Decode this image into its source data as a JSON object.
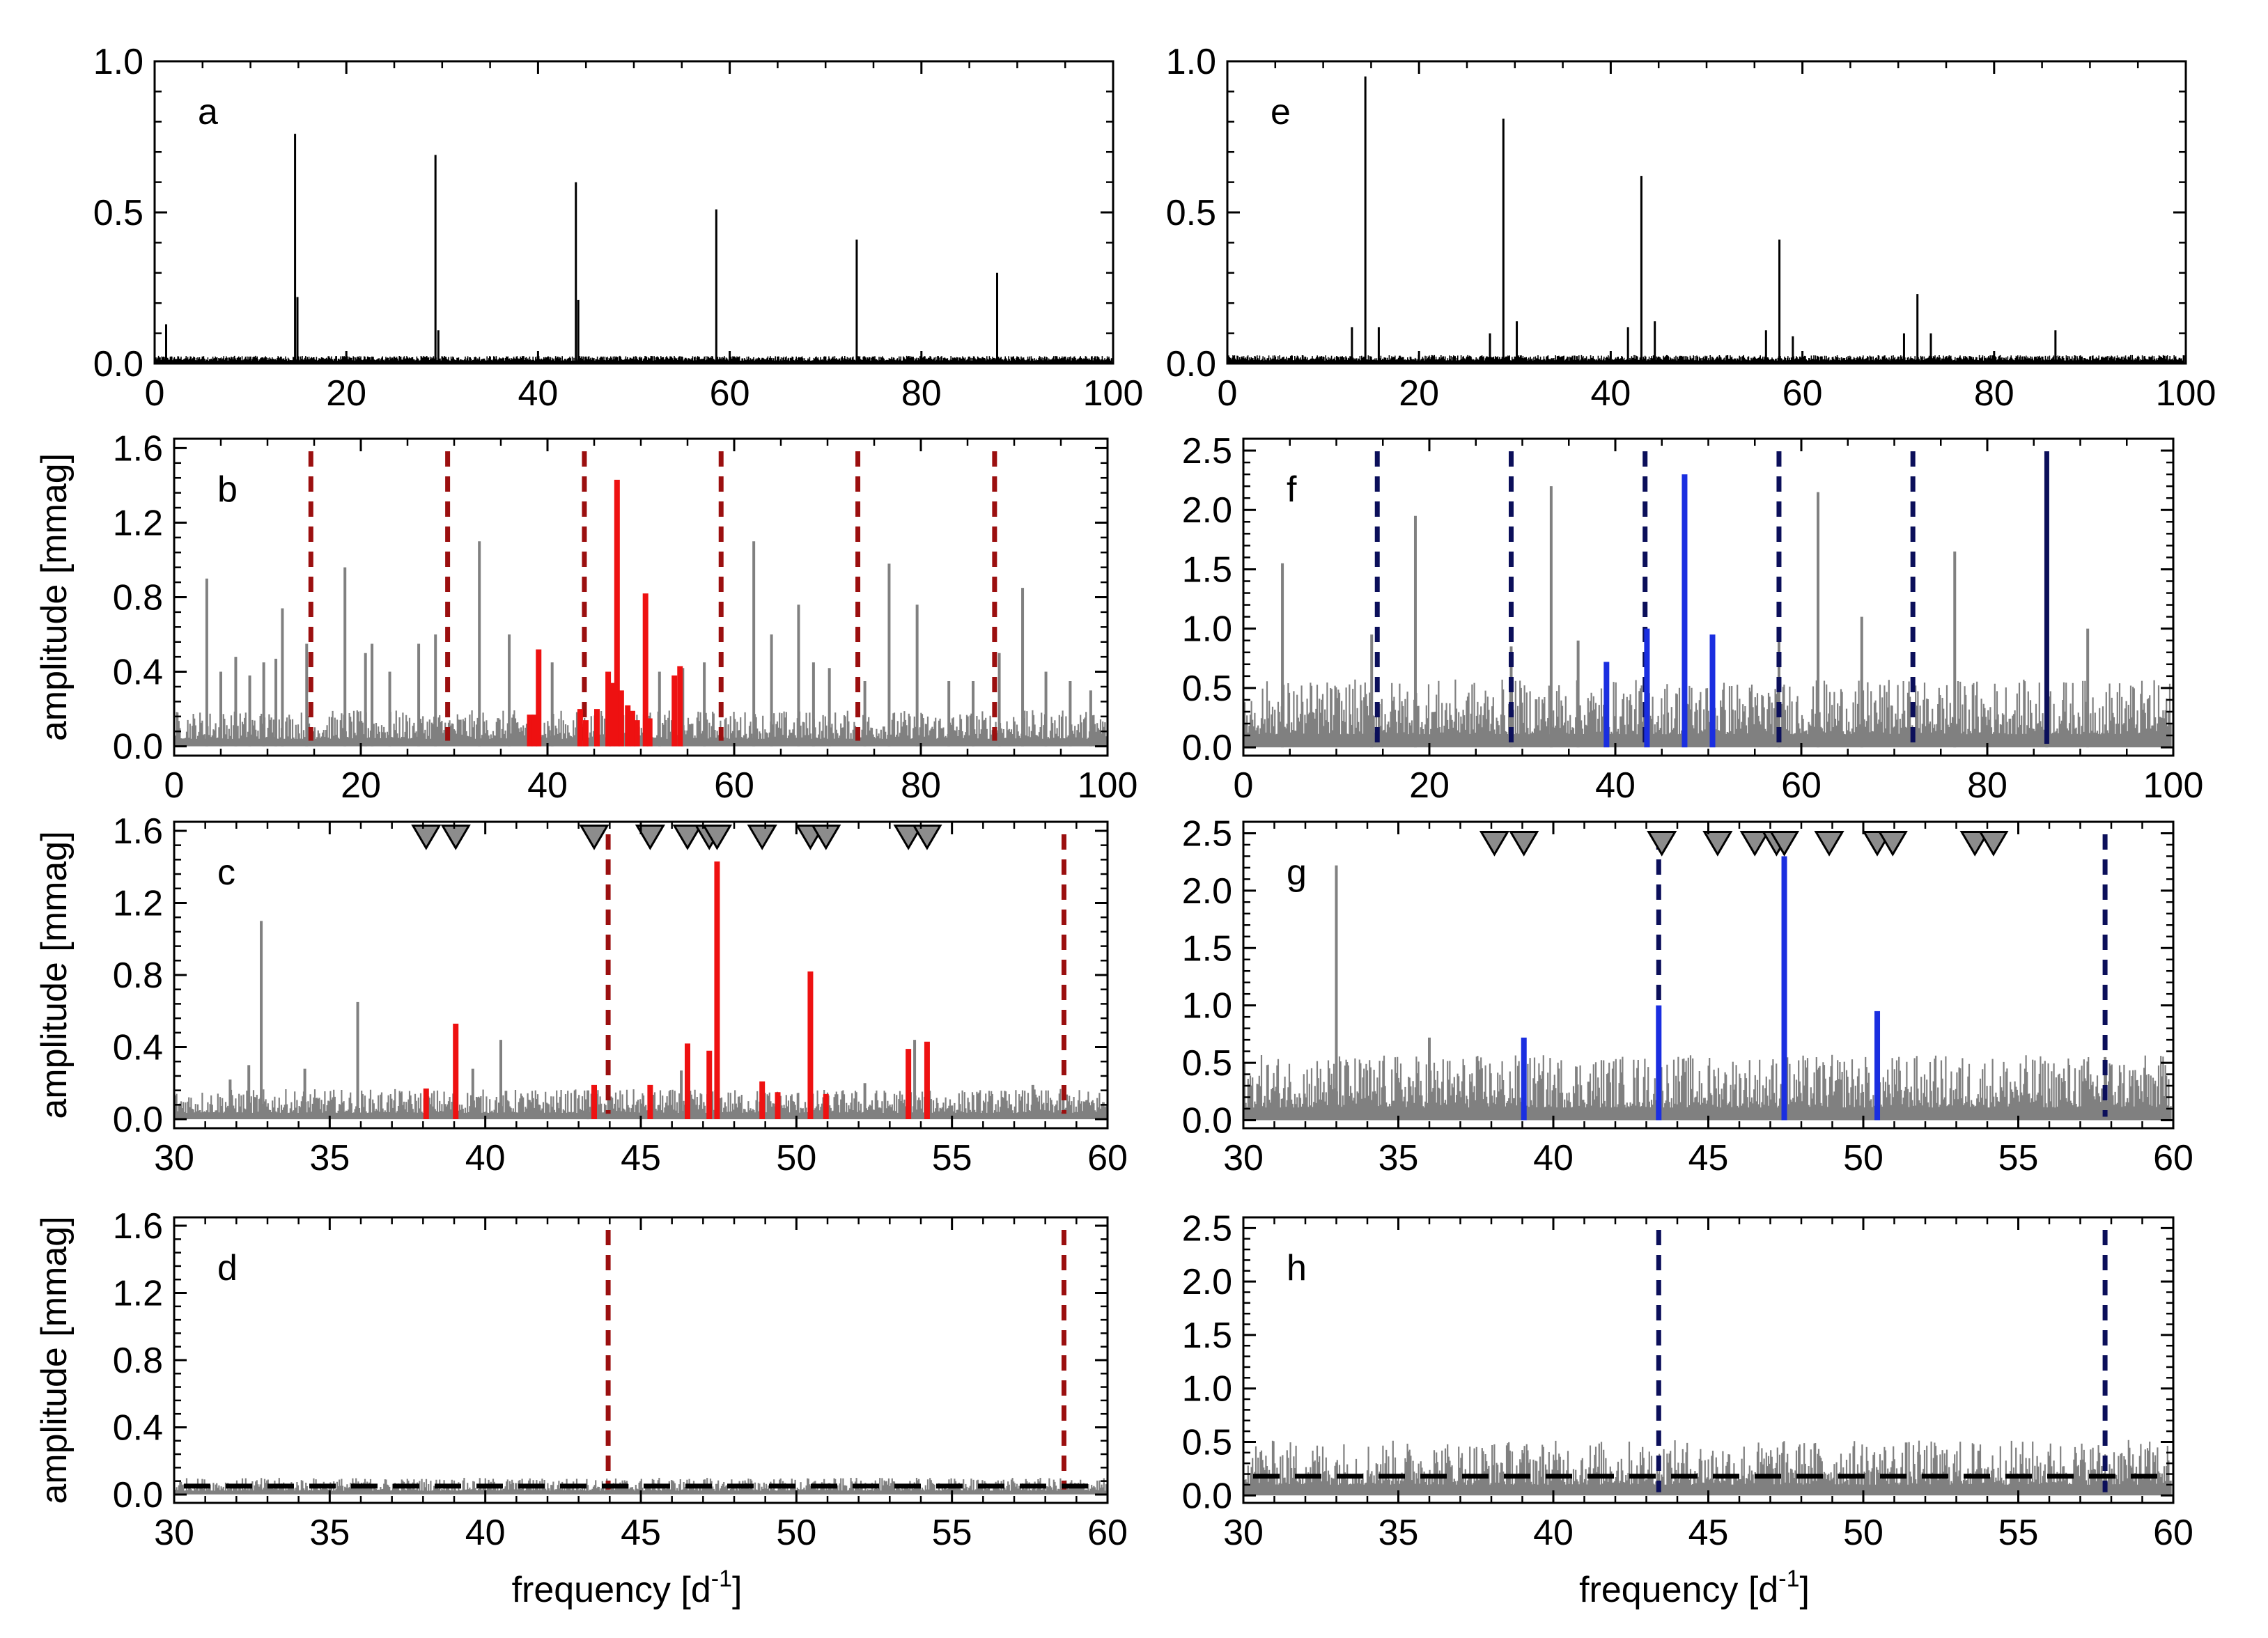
{
  "colors": {
    "noise": "#808080",
    "black": "#000000",
    "red": "#ee1111",
    "dark_red": "#9b0f0f",
    "blue": "#1a2ee0",
    "navy": "#0b0f5a",
    "triangle": "#8c8c8c"
  },
  "chart_data": [
    {
      "id": "a",
      "panel_label": "a",
      "type": "line",
      "xlim": [
        0,
        100
      ],
      "ylim": [
        0,
        1.0
      ],
      "xticks": [
        0,
        20,
        40,
        60,
        80,
        100
      ],
      "xtick_labels": [
        "0",
        "20",
        "40",
        "60",
        "80",
        "100"
      ],
      "yticks": [
        0,
        0.5,
        1.0
      ],
      "ytick_labels": [
        "0.0",
        "0.5",
        "1.0"
      ],
      "ylabel": "",
      "xlabel": "",
      "noise": {
        "level": 0.018,
        "color": "black"
      },
      "peaks_black": [
        {
          "x": 14.65,
          "y": 0.76
        },
        {
          "x": 29.3,
          "y": 0.69
        },
        {
          "x": 43.95,
          "y": 0.6
        },
        {
          "x": 58.6,
          "y": 0.51
        },
        {
          "x": 73.25,
          "y": 0.41
        },
        {
          "x": 87.9,
          "y": 0.3
        },
        {
          "x": 1.2,
          "y": 0.13
        },
        {
          "x": 14.9,
          "y": 0.22
        },
        {
          "x": 29.6,
          "y": 0.11
        },
        {
          "x": 44.2,
          "y": 0.21
        }
      ]
    },
    {
      "id": "b",
      "panel_label": "b",
      "type": "line",
      "xlim": [
        0,
        100
      ],
      "ylim": [
        -0.05,
        1.65
      ],
      "xticks": [
        0,
        20,
        40,
        60,
        80,
        100
      ],
      "xtick_labels": [
        "0",
        "20",
        "40",
        "60",
        "80",
        "100"
      ],
      "yticks": [
        0,
        0.4,
        0.8,
        1.2,
        1.6
      ],
      "ytick_labels": [
        "0.0",
        "0.4",
        "0.8",
        "1.2",
        "1.6"
      ],
      "ylabel": "amplitude [mmag]",
      "xlabel": "",
      "noise": {
        "level": 0.14,
        "color": "noise"
      },
      "peaks_gray": [
        {
          "x": 3.5,
          "y": 0.9
        },
        {
          "x": 5.0,
          "y": 0.4
        },
        {
          "x": 6.6,
          "y": 0.48
        },
        {
          "x": 8.1,
          "y": 0.38
        },
        {
          "x": 9.6,
          "y": 0.45
        },
        {
          "x": 10.9,
          "y": 0.47
        },
        {
          "x": 11.6,
          "y": 0.74
        },
        {
          "x": 14.2,
          "y": 0.55
        },
        {
          "x": 18.3,
          "y": 0.96
        },
        {
          "x": 20.5,
          "y": 0.5
        },
        {
          "x": 21.2,
          "y": 0.55
        },
        {
          "x": 23.1,
          "y": 0.4
        },
        {
          "x": 26.2,
          "y": 0.55
        },
        {
          "x": 28.0,
          "y": 0.6
        },
        {
          "x": 32.7,
          "y": 1.1
        },
        {
          "x": 35.9,
          "y": 0.6
        },
        {
          "x": 40.5,
          "y": 0.45
        },
        {
          "x": 52.0,
          "y": 0.4
        },
        {
          "x": 54.5,
          "y": 0.42
        },
        {
          "x": 56.8,
          "y": 0.45
        },
        {
          "x": 62.1,
          "y": 1.1
        },
        {
          "x": 64.0,
          "y": 0.6
        },
        {
          "x": 66.9,
          "y": 0.76
        },
        {
          "x": 68.5,
          "y": 0.45
        },
        {
          "x": 70.2,
          "y": 0.42
        },
        {
          "x": 74.0,
          "y": 0.35
        },
        {
          "x": 76.6,
          "y": 0.98
        },
        {
          "x": 79.6,
          "y": 0.76
        },
        {
          "x": 83.0,
          "y": 0.35
        },
        {
          "x": 85.6,
          "y": 0.35
        },
        {
          "x": 88.4,
          "y": 0.5
        },
        {
          "x": 90.9,
          "y": 0.85
        },
        {
          "x": 93.4,
          "y": 0.4
        },
        {
          "x": 96.0,
          "y": 0.35
        },
        {
          "x": 98.2,
          "y": 0.3
        }
      ],
      "peaks_colored": [
        {
          "x": 38.1,
          "y": 0.17
        },
        {
          "x": 38.6,
          "y": 0.17
        },
        {
          "x": 39.05,
          "y": 0.52
        },
        {
          "x": 43.5,
          "y": 0.2
        },
        {
          "x": 44.1,
          "y": 0.14
        },
        {
          "x": 45.3,
          "y": 0.2
        },
        {
          "x": 46.5,
          "y": 0.4
        },
        {
          "x": 46.9,
          "y": 0.34
        },
        {
          "x": 47.45,
          "y": 1.43
        },
        {
          "x": 47.9,
          "y": 0.3
        },
        {
          "x": 48.6,
          "y": 0.22
        },
        {
          "x": 49.1,
          "y": 0.19
        },
        {
          "x": 49.6,
          "y": 0.14
        },
        {
          "x": 50.5,
          "y": 0.82
        },
        {
          "x": 50.95,
          "y": 0.15
        },
        {
          "x": 53.6,
          "y": 0.38
        },
        {
          "x": 54.2,
          "y": 0.43
        }
      ],
      "colored_color": "red",
      "dashed_lines": [
        14.65,
        29.3,
        43.95,
        58.6,
        73.25,
        87.9
      ],
      "dashed_color": "dark_red"
    },
    {
      "id": "c",
      "panel_label": "c",
      "type": "line",
      "xlim": [
        30,
        60
      ],
      "ylim": [
        -0.05,
        1.65
      ],
      "xticks": [
        30,
        35,
        40,
        45,
        50,
        55,
        60
      ],
      "xtick_labels": [
        "30",
        "35",
        "40",
        "45",
        "50",
        "55",
        "60"
      ],
      "yticks": [
        0,
        0.4,
        0.8,
        1.2,
        1.6
      ],
      "ytick_labels": [
        "0.0",
        "0.4",
        "0.8",
        "1.2",
        "1.6"
      ],
      "ylabel": "amplitude [mmag]",
      "xlabel": "",
      "noise": {
        "level": 0.12,
        "color": "noise"
      },
      "peaks_gray": [
        {
          "x": 31.8,
          "y": 0.22
        },
        {
          "x": 32.4,
          "y": 0.3
        },
        {
          "x": 32.8,
          "y": 1.1
        },
        {
          "x": 34.2,
          "y": 0.28
        },
        {
          "x": 35.9,
          "y": 0.65
        },
        {
          "x": 39.6,
          "y": 0.28
        },
        {
          "x": 40.5,
          "y": 0.44
        },
        {
          "x": 43.3,
          "y": 0.16
        },
        {
          "x": 46.3,
          "y": 0.27
        },
        {
          "x": 52.2,
          "y": 0.2
        },
        {
          "x": 53.8,
          "y": 0.44
        },
        {
          "x": 57.6,
          "y": 0.19
        }
      ],
      "peaks_colored": [
        {
          "x": 38.1,
          "y": 0.17
        },
        {
          "x": 39.05,
          "y": 0.53
        },
        {
          "x": 43.5,
          "y": 0.19
        },
        {
          "x": 45.3,
          "y": 0.19
        },
        {
          "x": 46.5,
          "y": 0.42
        },
        {
          "x": 47.2,
          "y": 0.38
        },
        {
          "x": 47.45,
          "y": 1.43
        },
        {
          "x": 48.9,
          "y": 0.21
        },
        {
          "x": 49.4,
          "y": 0.15
        },
        {
          "x": 50.45,
          "y": 0.82
        },
        {
          "x": 50.95,
          "y": 0.14
        },
        {
          "x": 53.6,
          "y": 0.39
        },
        {
          "x": 54.2,
          "y": 0.43
        }
      ],
      "colored_color": "red",
      "dashed_lines": [
        43.95,
        58.6
      ],
      "dashed_color": "dark_red",
      "triangles": [
        38.1,
        39.05,
        43.5,
        45.3,
        46.5,
        47.2,
        47.45,
        48.9,
        50.45,
        50.95,
        53.6,
        54.2
      ],
      "triangle_y": 1.57
    },
    {
      "id": "d",
      "panel_label": "d",
      "type": "line",
      "xlim": [
        30,
        60
      ],
      "ylim": [
        -0.05,
        1.65
      ],
      "xticks": [
        30,
        35,
        40,
        45,
        50,
        55,
        60
      ],
      "xtick_labels": [
        "30",
        "35",
        "40",
        "45",
        "50",
        "55",
        "60"
      ],
      "yticks": [
        0,
        0.4,
        0.8,
        1.2,
        1.6
      ],
      "ytick_labels": [
        "0.0",
        "0.4",
        "0.8",
        "1.2",
        "1.6"
      ],
      "ylabel": "amplitude [mmag]",
      "xlabel": "frequency [d",
      "noise": {
        "level": 0.07,
        "color": "noise"
      },
      "peaks_gray": [],
      "dashed_lines": [
        43.95,
        58.6
      ],
      "dashed_color": "dark_red",
      "threshold": 0.05
    },
    {
      "id": "e",
      "panel_label": "e",
      "type": "line",
      "xlim": [
        0,
        100
      ],
      "ylim": [
        0,
        1.0
      ],
      "xticks": [
        0,
        20,
        40,
        60,
        80,
        100
      ],
      "xtick_labels": [
        "0",
        "20",
        "40",
        "60",
        "80",
        "100"
      ],
      "yticks": [
        0,
        0.5,
        1.0
      ],
      "ytick_labels": [
        "0.0",
        "0.5",
        "1.0"
      ],
      "ylabel": "",
      "xlabel": "",
      "noise": {
        "level": 0.02,
        "color": "black"
      },
      "peaks_black": [
        {
          "x": 14.4,
          "y": 0.95
        },
        {
          "x": 28.8,
          "y": 0.81
        },
        {
          "x": 43.2,
          "y": 0.62
        },
        {
          "x": 57.6,
          "y": 0.41
        },
        {
          "x": 72.0,
          "y": 0.23
        },
        {
          "x": 86.4,
          "y": 0.11
        },
        {
          "x": 13.0,
          "y": 0.12
        },
        {
          "x": 15.8,
          "y": 0.12
        },
        {
          "x": 27.4,
          "y": 0.1
        },
        {
          "x": 30.2,
          "y": 0.14
        },
        {
          "x": 41.8,
          "y": 0.12
        },
        {
          "x": 44.6,
          "y": 0.14
        },
        {
          "x": 56.2,
          "y": 0.11
        },
        {
          "x": 59.0,
          "y": 0.09
        },
        {
          "x": 70.6,
          "y": 0.1
        },
        {
          "x": 73.4,
          "y": 0.1
        }
      ]
    },
    {
      "id": "f",
      "panel_label": "f",
      "type": "line",
      "xlim": [
        0,
        100
      ],
      "ylim": [
        -0.07,
        2.6
      ],
      "xticks": [
        0,
        20,
        40,
        60,
        80,
        100
      ],
      "xtick_labels": [
        "0",
        "20",
        "40",
        "60",
        "80",
        "100"
      ],
      "yticks": [
        0,
        0.5,
        1.0,
        1.5,
        2.0,
        2.5
      ],
      "ytick_labels": [
        "0.0",
        "0.5",
        "1.0",
        "1.5",
        "2.0",
        "2.5"
      ],
      "ylabel": "",
      "xlabel": "",
      "noise": {
        "level": 0.42,
        "color": "noise"
      },
      "peaks_gray": [
        {
          "x": 4.2,
          "y": 1.55
        },
        {
          "x": 13.8,
          "y": 0.95
        },
        {
          "x": 18.5,
          "y": 1.95
        },
        {
          "x": 28.8,
          "y": 0.85
        },
        {
          "x": 33.1,
          "y": 2.2
        },
        {
          "x": 36.0,
          "y": 0.9
        },
        {
          "x": 57.6,
          "y": 1.0
        },
        {
          "x": 61.8,
          "y": 2.15
        },
        {
          "x": 66.5,
          "y": 1.1
        },
        {
          "x": 76.5,
          "y": 1.65
        },
        {
          "x": 86.4,
          "y": 1.05
        },
        {
          "x": 90.8,
          "y": 1.0
        }
      ],
      "peaks_colored": [
        {
          "x": 39.05,
          "y": 0.72
        },
        {
          "x": 43.4,
          "y": 1.0
        },
        {
          "x": 47.45,
          "y": 2.3
        },
        {
          "x": 50.45,
          "y": 0.95
        }
      ],
      "colored_color": "blue",
      "dashed_lines": [
        14.4,
        28.8,
        43.2,
        57.6,
        72.0
      ],
      "dashed_color": "navy",
      "solid_lines": [
        86.4
      ],
      "solid_color": "navy"
    },
    {
      "id": "g",
      "panel_label": "g",
      "type": "line",
      "xlim": [
        30,
        60
      ],
      "ylim": [
        -0.07,
        2.6
      ],
      "xticks": [
        30,
        35,
        40,
        45,
        50,
        55,
        60
      ],
      "xtick_labels": [
        "30",
        "35",
        "40",
        "45",
        "50",
        "55",
        "60"
      ],
      "yticks": [
        0,
        0.5,
        1.0,
        1.5,
        2.0,
        2.5
      ],
      "ytick_labels": [
        "0.0",
        "0.5",
        "1.0",
        "1.5",
        "2.0",
        "2.5"
      ],
      "ylabel": "",
      "xlabel": "",
      "noise": {
        "level": 0.42,
        "color": "noise"
      },
      "peaks_gray": [
        {
          "x": 33.0,
          "y": 2.22
        },
        {
          "x": 36.0,
          "y": 0.72
        },
        {
          "x": 57.8,
          "y": 0.55
        }
      ],
      "peaks_colored": [
        {
          "x": 39.05,
          "y": 0.72
        },
        {
          "x": 43.4,
          "y": 1.0
        },
        {
          "x": 47.45,
          "y": 2.3
        },
        {
          "x": 50.45,
          "y": 0.95
        }
      ],
      "colored_color": "blue",
      "dashed_lines": [
        43.4,
        57.8
      ],
      "dashed_color": "navy",
      "triangles": [
        38.1,
        39.05,
        43.5,
        45.3,
        46.5,
        47.2,
        47.45,
        48.9,
        50.45,
        50.95,
        53.6,
        54.2
      ],
      "triangle_y": 2.42
    },
    {
      "id": "h",
      "panel_label": "h",
      "type": "line",
      "xlim": [
        30,
        60
      ],
      "ylim": [
        -0.07,
        2.6
      ],
      "xticks": [
        30,
        35,
        40,
        45,
        50,
        55,
        60
      ],
      "xtick_labels": [
        "30",
        "35",
        "40",
        "45",
        "50",
        "55",
        "60"
      ],
      "yticks": [
        0,
        0.5,
        1.0,
        1.5,
        2.0,
        2.5
      ],
      "ytick_labels": [
        "0.0",
        "0.5",
        "1.0",
        "1.5",
        "2.0",
        "2.5"
      ],
      "ylabel": "",
      "xlabel": "frequency [d",
      "noise": {
        "level": 0.38,
        "color": "noise"
      },
      "peaks_gray": [],
      "dashed_lines": [
        43.4,
        57.8
      ],
      "dashed_color": "navy",
      "threshold": 0.18
    }
  ],
  "xlabel_superscript": "-1",
  "xlabel_close": "]"
}
